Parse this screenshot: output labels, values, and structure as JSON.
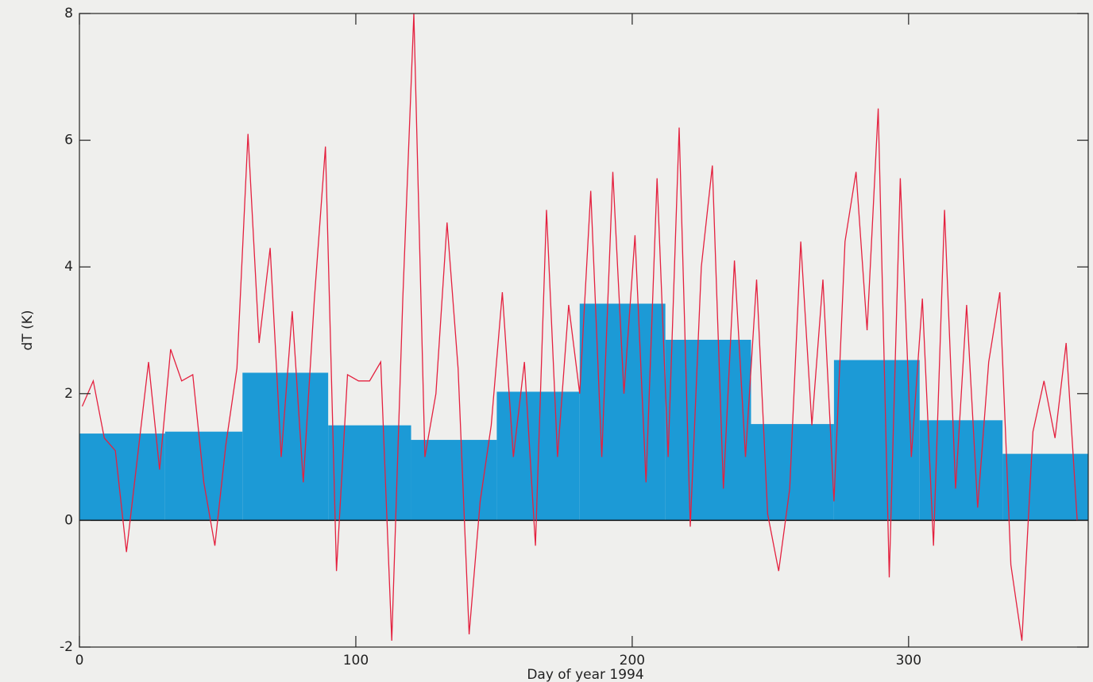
{
  "chart_data": [
    {
      "type": "histogram",
      "x_label": "Day of year 1994",
      "y_label": "dT (K)",
      "bins": [
        0,
        31,
        59,
        90,
        120,
        151,
        181,
        212,
        243,
        273,
        304,
        334,
        365
      ],
      "values": [
        1.37,
        1.4,
        2.33,
        1.5,
        1.27,
        2.03,
        3.42,
        2.85,
        1.52,
        2.53,
        1.58,
        1.05
      ],
      "color": "#1c9ad6",
      "xlim": [
        0,
        365
      ],
      "ylim": [
        -2,
        8
      ],
      "xticks": [
        0,
        100,
        200,
        300
      ],
      "yticks": [
        -2,
        0,
        2,
        4,
        6,
        8
      ]
    },
    {
      "type": "line",
      "color": "#e4213f",
      "x": [
        1,
        5,
        9,
        13,
        17,
        21,
        25,
        29,
        33,
        37,
        41,
        45,
        49,
        53,
        57,
        61,
        65,
        69,
        73,
        77,
        81,
        85,
        89,
        93,
        97,
        101,
        105,
        109,
        113,
        117,
        121,
        125,
        129,
        133,
        137,
        141,
        145,
        149,
        153,
        157,
        161,
        165,
        169,
        173,
        177,
        181,
        185,
        189,
        193,
        197,
        201,
        205,
        209,
        213,
        217,
        221,
        225,
        229,
        233,
        237,
        241,
        245,
        249,
        253,
        257,
        261,
        265,
        269,
        273,
        277,
        281,
        285,
        289,
        293,
        297,
        301,
        305,
        309,
        313,
        317,
        321,
        325,
        329,
        333,
        337,
        341,
        345,
        349,
        353,
        357,
        361
      ],
      "values": [
        1.8,
        2.2,
        1.3,
        1.1,
        -0.5,
        1.0,
        2.5,
        0.8,
        2.7,
        2.2,
        2.3,
        0.6,
        -0.4,
        1.2,
        2.4,
        6.1,
        2.8,
        4.3,
        1.0,
        3.3,
        0.6,
        3.5,
        5.9,
        -0.8,
        2.3,
        2.2,
        2.2,
        2.5,
        -1.9,
        3.5,
        8.0,
        1.0,
        2.0,
        4.7,
        2.4,
        -1.8,
        0.3,
        1.5,
        3.6,
        1.0,
        2.5,
        -0.4,
        4.9,
        1.0,
        3.4,
        2.0,
        5.2,
        1.0,
        5.5,
        2.0,
        4.5,
        0.6,
        5.4,
        1.0,
        6.2,
        -0.1,
        4.0,
        5.6,
        0.5,
        4.1,
        1.0,
        3.8,
        0.1,
        -0.8,
        0.5,
        4.4,
        1.5,
        3.8,
        0.3,
        4.4,
        5.5,
        3.0,
        6.5,
        -0.9,
        5.4,
        1.0,
        3.5,
        -0.4,
        4.9,
        0.5,
        3.4,
        0.2,
        2.5,
        3.6,
        -0.7,
        -1.9,
        1.4,
        2.2,
        1.3,
        2.8,
        0.0
      ]
    }
  ]
}
